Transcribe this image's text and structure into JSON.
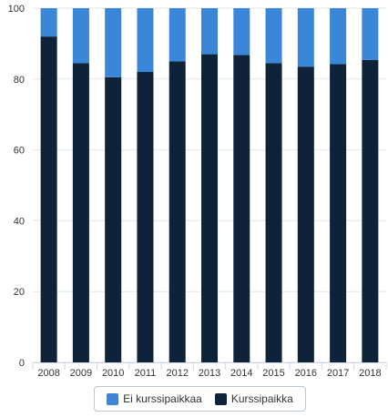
{
  "chart_data": {
    "type": "bar",
    "stacked": true,
    "categories": [
      "2008",
      "2009",
      "2010",
      "2011",
      "2012",
      "2013",
      "2014",
      "2015",
      "2016",
      "2017",
      "2018"
    ],
    "series": [
      {
        "name": "Kurssipaikka",
        "color": "#0e2339",
        "values": [
          92,
          84.5,
          80.5,
          82,
          85,
          87,
          86.8,
          84.5,
          83.5,
          84.2,
          85.4
        ]
      },
      {
        "name": "Ei kurssipaikkaa",
        "color": "#3a86d9",
        "values": [
          8,
          15.5,
          19.5,
          18,
          15,
          13,
          13.2,
          15.5,
          16.5,
          15.8,
          14.6
        ]
      }
    ],
    "legend_order": [
      "Ei kurssipaikkaa",
      "Kurssipaikka"
    ],
    "y_ticks": [
      "0",
      "20",
      "40",
      "60",
      "80",
      "100"
    ],
    "ylim": [
      0,
      100
    ],
    "grid": true,
    "legend_position": "bottom"
  }
}
